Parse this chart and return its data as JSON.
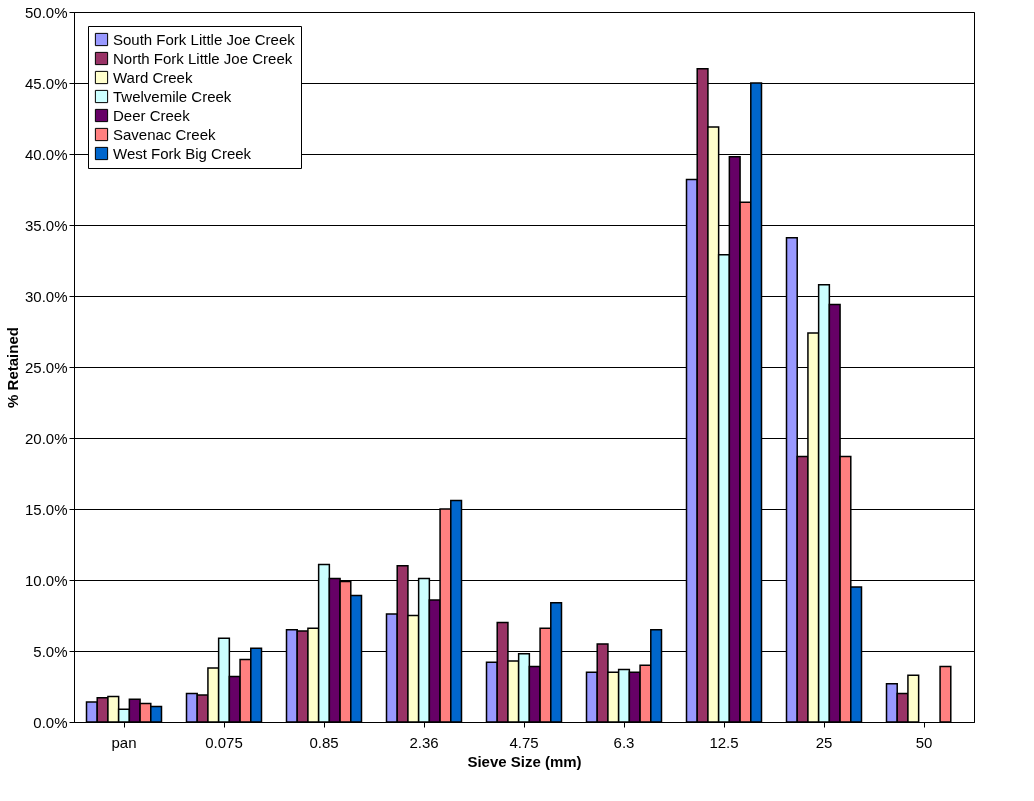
{
  "chart_data": {
    "type": "bar",
    "xlabel": "Sieve Size (mm)",
    "ylabel": "% Retained",
    "categories": [
      "pan",
      "0.075",
      "0.85",
      "2.36",
      "4.75",
      "6.3",
      "12.5",
      "25",
      "50"
    ],
    "series": [
      {
        "name": "South Fork Little Joe Creek",
        "color": "#9999ff",
        "values": [
          1.4,
          2.0,
          6.5,
          7.6,
          4.2,
          3.5,
          38.2,
          34.1,
          2.7
        ]
      },
      {
        "name": "North Fork Little Joe Creek",
        "color": "#993366",
        "values": [
          1.7,
          1.9,
          6.4,
          11.0,
          7.0,
          5.5,
          46.0,
          18.7,
          2.0
        ]
      },
      {
        "name": "Ward Creek",
        "color": "#ffffcc",
        "values": [
          1.8,
          3.8,
          6.6,
          7.5,
          4.3,
          3.5,
          41.9,
          27.4,
          3.3
        ]
      },
      {
        "name": "Twelvemile Creek",
        "color": "#ccffff",
        "values": [
          0.9,
          5.9,
          11.1,
          10.1,
          4.8,
          3.7,
          32.9,
          30.8,
          null
        ]
      },
      {
        "name": "Deer Creek",
        "color": "#660066",
        "values": [
          1.6,
          3.2,
          10.1,
          8.6,
          3.9,
          3.5,
          39.8,
          29.4,
          null
        ]
      },
      {
        "name": "Savenac Creek",
        "color": "#ff8080",
        "values": [
          1.3,
          4.4,
          9.9,
          15.0,
          6.6,
          4.0,
          36.6,
          18.7,
          3.9
        ]
      },
      {
        "name": "West Fork Big Creek",
        "color": "#0066cc",
        "values": [
          1.1,
          5.2,
          8.9,
          15.6,
          8.4,
          6.5,
          45.0,
          9.5,
          null
        ]
      }
    ],
    "ylim": [
      0,
      50
    ],
    "yticks": [
      {
        "value": 0,
        "label": "0.0%"
      },
      {
        "value": 5,
        "label": "5.0%"
      },
      {
        "value": 10,
        "label": "10.0%"
      },
      {
        "value": 15,
        "label": "15.0%"
      },
      {
        "value": 20,
        "label": "20.0%"
      },
      {
        "value": 25,
        "label": "25.0%"
      },
      {
        "value": 30,
        "label": "30.0%"
      },
      {
        "value": 35,
        "label": "35.0%"
      },
      {
        "value": 40,
        "label": "40.0%"
      },
      {
        "value": 45,
        "label": "45.0%"
      },
      {
        "value": 50,
        "label": "50.0%"
      }
    ],
    "grid": "y",
    "legend": "top left"
  }
}
